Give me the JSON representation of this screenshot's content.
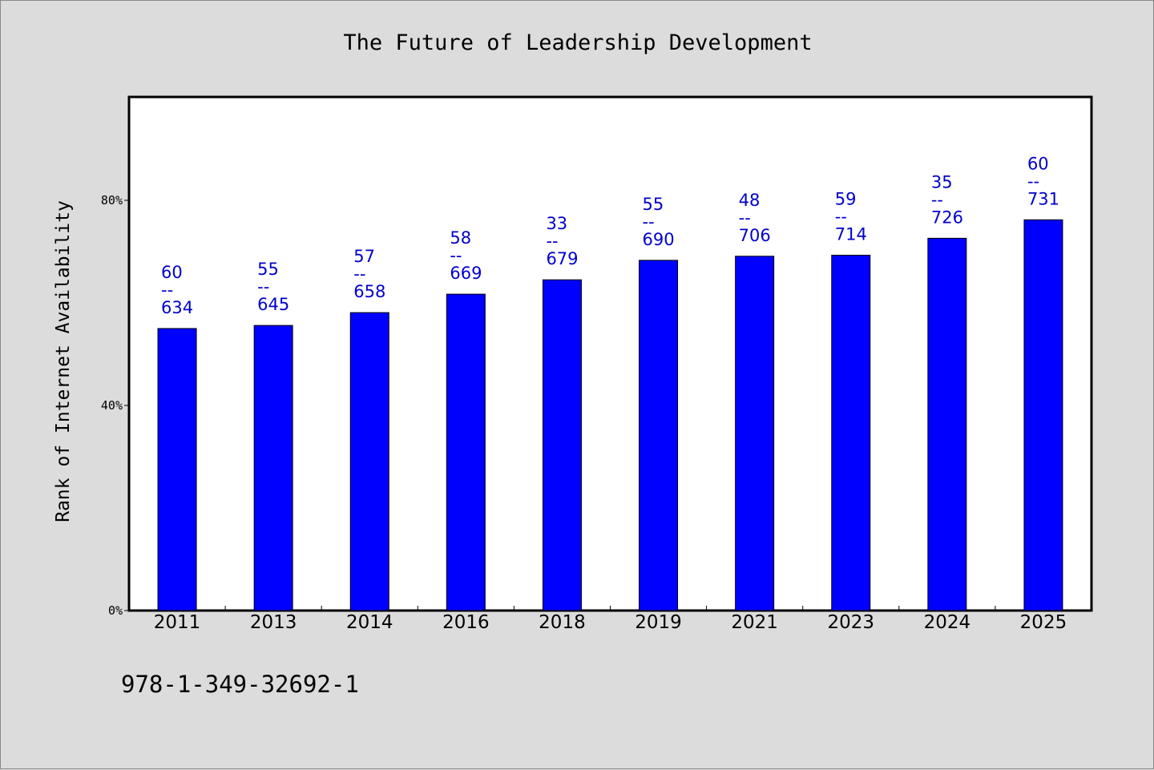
{
  "chart_data": {
    "type": "bar",
    "title": "The Future of Leadership Development",
    "xlabel": "",
    "ylabel": "Rank of Internet Availability",
    "categories": [
      "2011",
      "2013",
      "2014",
      "2016",
      "2018",
      "2019",
      "2021",
      "2023",
      "2024",
      "2025"
    ],
    "values": [
      55,
      55.6,
      58.1,
      61.7,
      64.5,
      68.3,
      69.1,
      69.3,
      72.6,
      76.2
    ],
    "value_unit": "%",
    "bar_labels": [
      [
        "60",
        "--",
        "634"
      ],
      [
        "55",
        "--",
        "645"
      ],
      [
        "57",
        "--",
        "658"
      ],
      [
        "58",
        "--",
        "669"
      ],
      [
        "33",
        "--",
        "679"
      ],
      [
        "55",
        "--",
        "690"
      ],
      [
        "48",
        "--",
        "706"
      ],
      [
        "59",
        "--",
        "714"
      ],
      [
        "35",
        "--",
        "726"
      ],
      [
        "60",
        "--",
        "731"
      ]
    ],
    "ylim": [
      0,
      100
    ],
    "yticks": [
      0,
      40,
      80
    ],
    "ytick_labels": [
      "0%",
      "40%",
      "80%"
    ],
    "grid": false,
    "colors": {
      "bar": "#0000ff",
      "label": "#0000cc",
      "plot_bg": "#ffffff",
      "page_bg": "#dcdcdc"
    }
  },
  "footer": {
    "isbn": "978-1-349-32692-1"
  }
}
